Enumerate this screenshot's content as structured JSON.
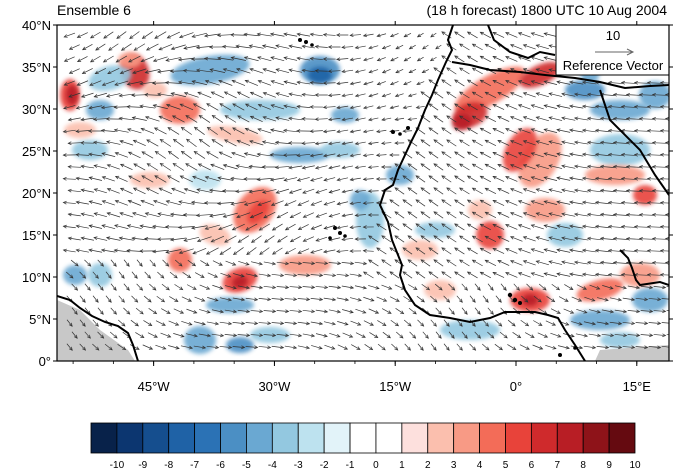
{
  "title": {
    "left": "Ensemble 6",
    "right": "(18 h forecast) 1800 UTC 10 Aug 2004"
  },
  "map": {
    "lat_labels": [
      "40°N",
      "35°N",
      "30°N",
      "25°N",
      "20°N",
      "15°N",
      "10°N",
      "5°N",
      "0°"
    ],
    "lon_labels": [
      "45°W",
      "30°W",
      "15°W",
      "0°",
      "15°E"
    ],
    "lat_range": [
      0,
      40
    ],
    "lon_range": [
      -57,
      19
    ],
    "field": "diverging anomaly shading with wind vectors",
    "coastline_color": "#000000"
  },
  "reference_vector": {
    "magnitude_label": "10",
    "caption": "Reference Vector"
  },
  "colorbar": {
    "labels": [
      "-10",
      "-9",
      "-8",
      "-7",
      "-6",
      "-5",
      "-4",
      "-3",
      "-2",
      "-1",
      "0",
      "1",
      "2",
      "3",
      "4",
      "5",
      "6",
      "7",
      "8",
      "9",
      "10"
    ],
    "colors": [
      "#08224a",
      "#0c3670",
      "#154e8e",
      "#1f62a6",
      "#2b72b5",
      "#4b8fc4",
      "#6aa8d2",
      "#93c8e0",
      "#bde2ef",
      "#e2f3f9",
      "#ffffff",
      "#ffffff",
      "#fde0dd",
      "#fbbfae",
      "#f89a85",
      "#f36c58",
      "#e8433a",
      "#cf2a2c",
      "#b81e25",
      "#8e1319",
      "#650a10"
    ]
  }
}
